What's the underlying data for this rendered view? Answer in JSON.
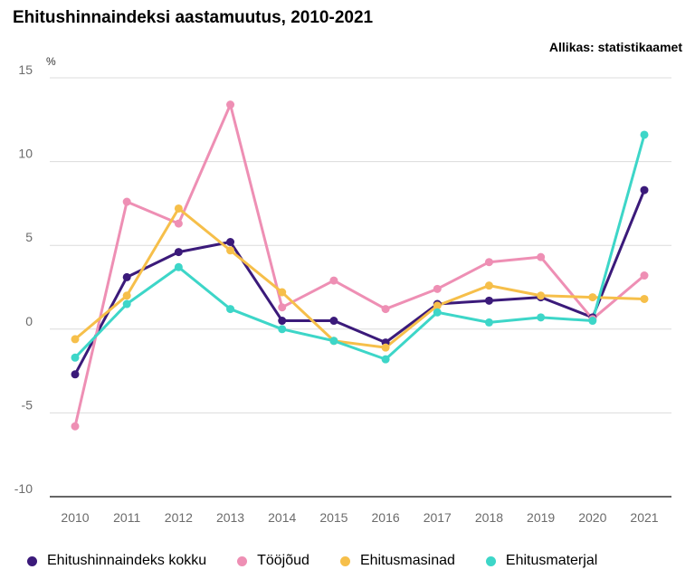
{
  "title": "Ehitushinnaindeksi aastamuutus, 2010-2021",
  "source": "Allikas: statistikaamet",
  "chart_data": {
    "type": "line",
    "title": "Ehitushinnaindeksi aastamuutus, 2010-2021",
    "ylabel": "%",
    "xlabel": "",
    "ylim": [
      -10,
      15
    ],
    "yticks": [
      "15",
      "10",
      "5",
      "0",
      "-5",
      "-10"
    ],
    "grid": true,
    "legend": "bottom",
    "x": [
      "2010",
      "2011",
      "2012",
      "2013",
      "2014",
      "2015",
      "2016",
      "2017",
      "2018",
      "2019",
      "2020",
      "2021"
    ],
    "series": [
      {
        "name": "Ehitushinnaindeks kokku",
        "color": "#3b1a7a",
        "values": [
          -2.7,
          3.1,
          4.6,
          5.2,
          0.5,
          0.5,
          -0.8,
          1.5,
          1.7,
          1.9,
          0.7,
          8.3
        ]
      },
      {
        "name": "Tööjõud",
        "color": "#ee8fb4",
        "values": [
          -5.8,
          7.6,
          6.3,
          13.4,
          1.3,
          2.9,
          1.2,
          2.4,
          4.0,
          4.3,
          0.6,
          3.2
        ]
      },
      {
        "name": "Ehitusmasinad",
        "color": "#f6bf4a",
        "values": [
          -0.6,
          2.0,
          7.2,
          4.7,
          2.2,
          -0.7,
          -1.1,
          1.4,
          2.6,
          2.0,
          1.9,
          1.8
        ]
      },
      {
        "name": "Ehitusmaterjal",
        "color": "#3dd6c8",
        "values": [
          -1.7,
          1.5,
          3.7,
          1.2,
          0.0,
          -0.7,
          -1.8,
          1.0,
          0.4,
          0.7,
          0.5,
          11.6
        ]
      }
    ]
  }
}
